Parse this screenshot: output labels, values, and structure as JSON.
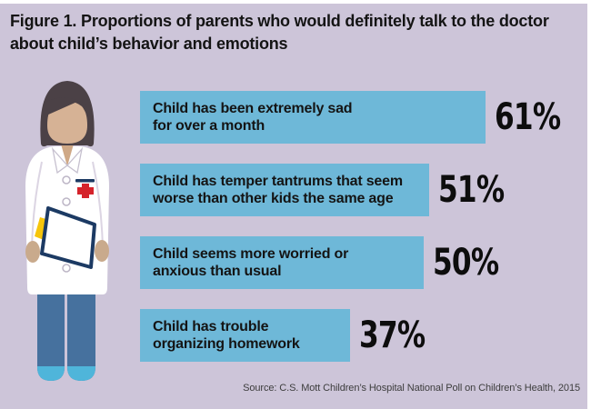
{
  "header": {
    "title_line1": "Figure 1. Proportions of parents who would definitely talk to the doctor",
    "title_line2": "about child’s behavior and emotions"
  },
  "footer": {
    "source": "Source: C.S. Mott Children’s Hospital National Poll on Children’s Health, 2015"
  },
  "chart_data": {
    "type": "bar",
    "orientation": "horizontal",
    "title": "Figure 1. Proportions of parents who would definitely talk to the doctor about child’s behavior and emotions",
    "categories": [
      "Child has been extremely sad for over a month",
      "Child has temper tantrums that seem worse than other kids the same age",
      "Child seems more worried or anxious than usual",
      "Child has trouble organizing homework"
    ],
    "category_lines": [
      [
        "Child has been extremely sad",
        "for over a month"
      ],
      [
        "Child has temper tantrums that seem",
        "worse than other kids the same age"
      ],
      [
        "Child seems more worried or",
        "anxious than usual"
      ],
      [
        "Child has trouble",
        "organizing homework"
      ]
    ],
    "values": [
      61,
      51,
      50,
      37
    ],
    "value_labels": [
      "61%",
      "51%",
      "50%",
      "37%"
    ],
    "unit": "%",
    "xlim": [
      0,
      100
    ],
    "bar_color": "#6eb8d8",
    "background_color": "#cdc5d9",
    "text_color": "#141414",
    "source": "Source: C.S. Mott Children’s Hospital National Poll on Children’s Health, 2015"
  },
  "illustration": {
    "name": "female-doctor-with-clipboard",
    "colors": {
      "hair": "#4b4146",
      "skin": "#d6b295",
      "neck_shadow": "#cfa886",
      "coat": "#ffffff",
      "seam": "#dcd5e3",
      "cross_red": "#d5232b",
      "navy": "#1c3a63",
      "note_yellow": "#f6c50b",
      "pants": "#46719e",
      "shoes": "#4fb5da"
    }
  }
}
